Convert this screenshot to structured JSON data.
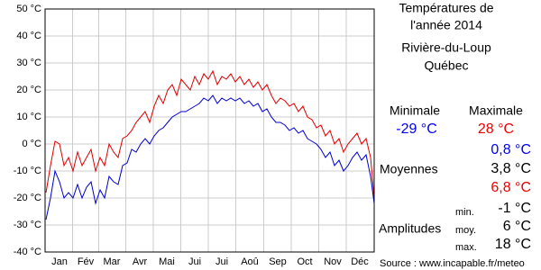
{
  "chart_data": {
    "type": "line",
    "x": [
      1,
      6,
      11,
      16,
      21,
      26,
      31,
      36,
      41,
      46,
      51,
      56,
      61,
      66,
      71,
      76,
      81,
      86,
      91,
      96,
      101,
      106,
      111,
      116,
      121,
      126,
      131,
      136,
      141,
      146,
      151,
      156,
      161,
      166,
      171,
      176,
      181,
      186,
      191,
      196,
      201,
      206,
      211,
      216,
      221,
      226,
      231,
      236,
      241,
      246,
      251,
      256,
      261,
      266,
      271,
      276,
      281,
      286,
      291,
      296,
      301,
      306,
      311,
      316,
      321,
      326,
      331,
      336,
      341,
      346,
      351,
      356,
      361,
      365
    ],
    "series": [
      {
        "name": "Maximale",
        "color": "#e00000",
        "values": [
          -18,
          -8,
          1,
          0,
          -8,
          -5,
          -10,
          -3,
          -8,
          -5,
          -2,
          -10,
          -5,
          -8,
          0,
          -3,
          -5,
          2,
          3,
          5,
          8,
          10,
          12,
          8,
          14,
          18,
          15,
          20,
          22,
          18,
          24,
          22,
          20,
          25,
          22,
          26,
          24,
          27,
          22,
          25,
          24,
          26,
          23,
          25,
          22,
          24,
          21,
          23,
          20,
          22,
          18,
          15,
          17,
          16,
          14,
          15,
          12,
          14,
          10,
          9,
          6,
          7,
          3,
          5,
          0,
          2,
          -3,
          0,
          2,
          4,
          0,
          2,
          -5,
          -20
        ]
      },
      {
        "name": "Minimale",
        "color": "#0000cc",
        "values": [
          -28,
          -20,
          -10,
          -14,
          -20,
          -18,
          -20,
          -15,
          -20,
          -16,
          -14,
          -22,
          -17,
          -20,
          -12,
          -14,
          -15,
          -8,
          -7,
          -2,
          -3,
          0,
          2,
          0,
          3,
          5,
          6,
          8,
          10,
          11,
          12,
          12,
          13,
          14,
          15,
          17,
          16,
          18,
          15,
          17,
          16,
          17,
          16,
          17,
          15,
          16,
          14,
          15,
          12,
          13,
          10,
          8,
          8,
          7,
          5,
          6,
          4,
          5,
          2,
          1,
          0,
          -2,
          -5,
          -3,
          -8,
          -6,
          -10,
          -8,
          -5,
          -3,
          -6,
          -4,
          -12,
          -22
        ]
      }
    ],
    "xlim": [
      0,
      365
    ],
    "xticks": [
      {
        "value": 16,
        "label": "Jan"
      },
      {
        "value": 45,
        "label": "Fév"
      },
      {
        "value": 74,
        "label": "Mar"
      },
      {
        "value": 105,
        "label": "Avr"
      },
      {
        "value": 135,
        "label": "Mai"
      },
      {
        "value": 166,
        "label": "Jui"
      },
      {
        "value": 196,
        "label": "Jui"
      },
      {
        "value": 227,
        "label": "Aoû"
      },
      {
        "value": 258,
        "label": "Sep"
      },
      {
        "value": 288,
        "label": "Oct"
      },
      {
        "value": 319,
        "label": "Nov"
      },
      {
        "value": 349,
        "label": "Déc"
      }
    ],
    "ylim": [
      -40,
      50
    ],
    "yticks": [
      {
        "value": -40,
        "label": "-40 °C"
      },
      {
        "value": -30,
        "label": "-30 °C"
      },
      {
        "value": -20,
        "label": "-20 °C"
      },
      {
        "value": -10,
        "label": "-10 °C"
      },
      {
        "value": 0,
        "label": "0 °C"
      },
      {
        "value": 10,
        "label": "10 °C"
      },
      {
        "value": 20,
        "label": "20 °C"
      },
      {
        "value": 30,
        "label": "30 °C"
      },
      {
        "value": 40,
        "label": "40 °C"
      },
      {
        "value": 50,
        "label": "50 °C"
      }
    ],
    "grid": true
  },
  "side_panel": {
    "title": [
      "Températures de",
      "l'année 2014"
    ],
    "location": [
      "Rivière-du-Loup",
      "Québec"
    ],
    "min_label": "Minimale",
    "max_label": "Maximale",
    "min_value": "-29 °C",
    "max_value": "28 °C",
    "averages_label": "Moyennes",
    "averages": [
      "0,8 °C",
      "3,8 °C",
      "6,8 °C"
    ],
    "amplitudes_label": "Amplitudes",
    "amplitudes": [
      {
        "label": "min.",
        "value": "-1 °C"
      },
      {
        "label": "moy.",
        "value": "6 °C"
      },
      {
        "label": "max.",
        "value": "18 °C"
      }
    ],
    "source": "Source : www.incapable.fr/meteo"
  }
}
